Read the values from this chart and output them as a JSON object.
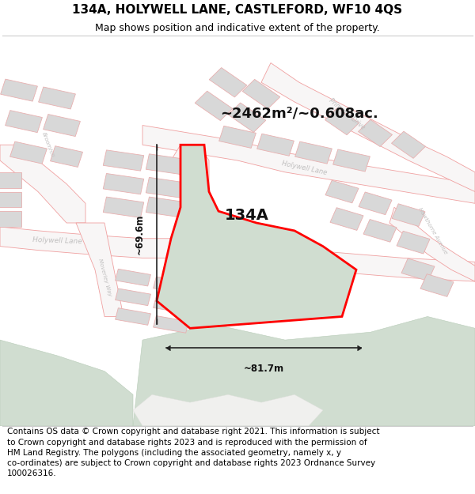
{
  "title": "134A, HOLYWELL LANE, CASTLEFORD, WF10 4QS",
  "subtitle": "Map shows position and indicative extent of the property.",
  "footer": "Contains OS data © Crown copyright and database right 2021. This information is subject\nto Crown copyright and database rights 2023 and is reproduced with the permission of\nHM Land Registry. The polygons (including the associated geometry, namely x, y\nco-ordinates) are subject to Crown copyright and database rights 2023 Ordnance Survey\n100026316.",
  "area_label": "~2462m²/~0.608ac.",
  "property_label": "134A",
  "dim_vertical": "~69.6m",
  "dim_horizontal": "~81.7m",
  "map_bg": "#f8f6f6",
  "road_line_color": "#f0a0a0",
  "road_line_lw": 0.6,
  "property_fill": "#d0ddd0",
  "property_edge": "#ff0000",
  "building_fill": "#d8d8d8",
  "building_edge": "#e8b0b0",
  "green_fill": "#d0ddd0",
  "green_edge": "#b8ccb8",
  "street_color": "#c0bfbf",
  "title_fs": 11,
  "subtitle_fs": 9,
  "footer_fs": 7.5,
  "label_fs": 14,
  "area_fs": 13,
  "dim_fs": 8.5
}
